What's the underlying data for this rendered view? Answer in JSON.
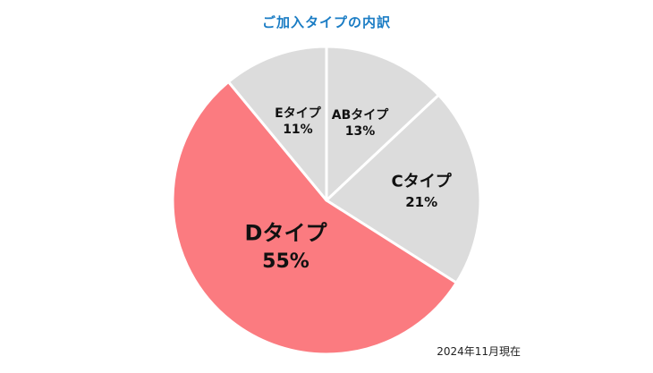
{
  "chart_data": {
    "type": "pie",
    "title": "ご加入タイプの内訳",
    "note": "2024年11月現在",
    "slices": [
      {
        "label": "ABタイプ",
        "value": 13,
        "value_text": "13%",
        "color": "#dcdcdc"
      },
      {
        "label": "Cタイプ",
        "value": 21,
        "value_text": "21%",
        "color": "#dcdcdc"
      },
      {
        "label": "Dタイプ",
        "value": 55,
        "value_text": "55%",
        "color": "#fb7b80"
      },
      {
        "label": "Eタイプ",
        "value": 11,
        "value_text": "11%",
        "color": "#dcdcdc"
      }
    ],
    "start": "12 o'clock",
    "direction": "clockwise",
    "legend": "none",
    "slice_border_color": "#ffffff"
  }
}
